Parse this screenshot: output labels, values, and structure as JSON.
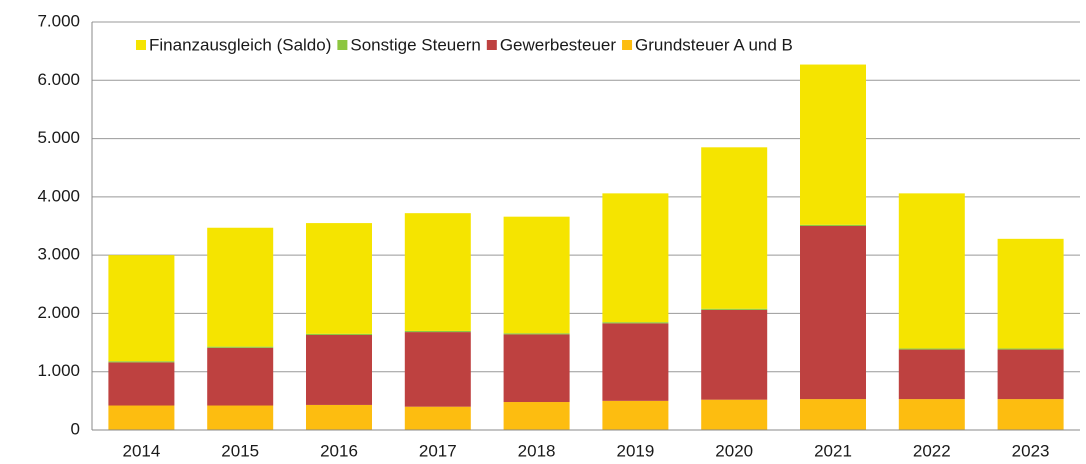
{
  "chart_data": {
    "type": "stacked_bar",
    "categories": [
      "2014",
      "2015",
      "2016",
      "2017",
      "2018",
      "2019",
      "2020",
      "2021",
      "2022",
      "2023"
    ],
    "series": [
      {
        "name": "Finanzausgleich (Saldo)",
        "color": "#f5e400",
        "values": [
          1820,
          2040,
          1900,
          2020,
          2000,
          2210,
          2770,
          2750,
          2660,
          1880
        ]
      },
      {
        "name": "Sonstige Steuern",
        "color": "#8dc63f",
        "values": [
          20,
          20,
          20,
          20,
          20,
          20,
          20,
          20,
          20,
          20
        ]
      },
      {
        "name": "Gewerbesteuer",
        "color": "#be4140",
        "values": [
          740,
          990,
          1200,
          1280,
          1160,
          1330,
          1540,
          2970,
          850,
          850
        ]
      },
      {
        "name": "Grundsteuer A und B",
        "color": "#fdbd10",
        "values": [
          420,
          420,
          430,
          400,
          480,
          500,
          520,
          530,
          530,
          530
        ]
      }
    ],
    "ylim": [
      0,
      7000
    ],
    "yticks": [
      0,
      {
        "value": 1000,
        "label": "1.000"
      },
      {
        "value": 2000,
        "label": "2.000"
      },
      {
        "value": 3000,
        "label": "3.000"
      },
      {
        "value": 4000,
        "label": "4.000"
      },
      {
        "value": 5000,
        "label": "5.000"
      },
      {
        "value": 6000,
        "label": "6.000"
      },
      {
        "value": 7000,
        "label": "7.000"
      }
    ],
    "grid": true,
    "legend": "top"
  }
}
